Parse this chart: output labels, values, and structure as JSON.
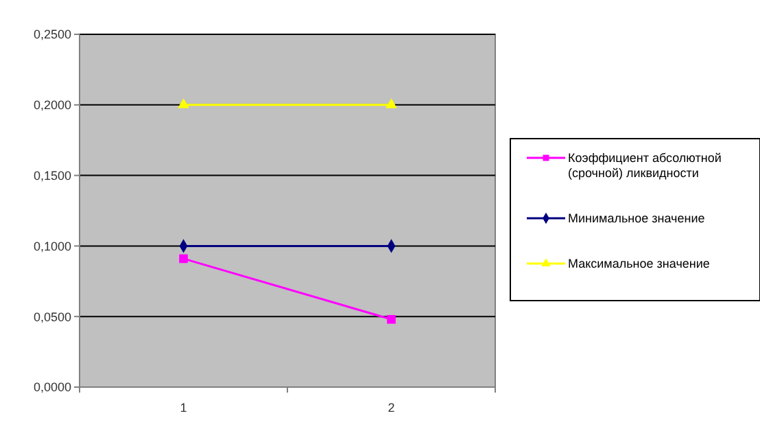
{
  "chart_data": {
    "type": "line",
    "categories": [
      "1",
      "2"
    ],
    "series": [
      {
        "name": "Коэффициент абсолютной (срочной) ликвидности",
        "color": "#ff00ff",
        "values": [
          0.091,
          0.048
        ],
        "marker": "square"
      },
      {
        "name": "Минимальное значение",
        "color": "#000080",
        "values": [
          0.1,
          0.1
        ],
        "marker": "diamond"
      },
      {
        "name": "Максимальное значение",
        "color": "#ffff00",
        "values": [
          0.2,
          0.2
        ],
        "marker": "triangle"
      }
    ],
    "ylim": [
      0,
      0.25
    ],
    "yticks": [
      {
        "value": 0,
        "label": "0,0000"
      },
      {
        "value": 0.05,
        "label": "0,0500"
      },
      {
        "value": 0.1,
        "label": "0,1000"
      },
      {
        "value": 0.15,
        "label": "0,1500"
      },
      {
        "value": 0.2,
        "label": "0,2000"
      },
      {
        "value": 0.25,
        "label": "0,2500"
      }
    ],
    "grid": "y",
    "legend": "right"
  }
}
